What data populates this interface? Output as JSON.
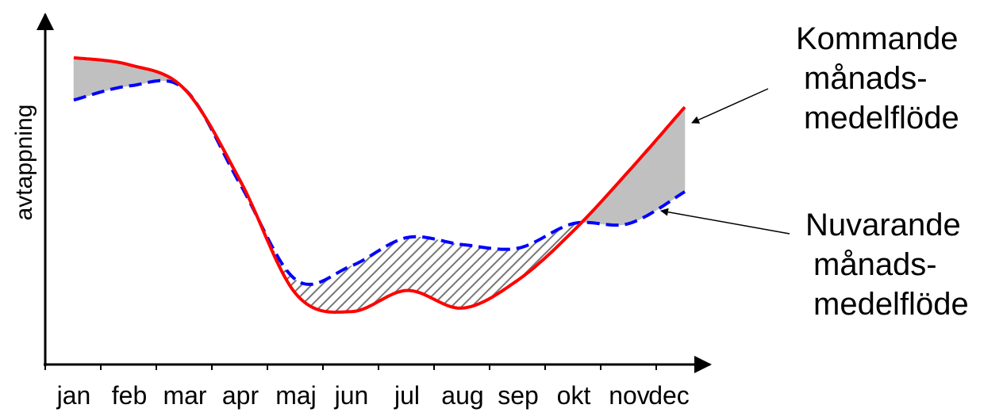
{
  "chart_data": {
    "type": "line",
    "ylabel": "avtappning",
    "categories": [
      "jan",
      "feb",
      "mar",
      "apr",
      "maj",
      "jun",
      "jul",
      "aug",
      "sep",
      "okt",
      "nov",
      "dec"
    ],
    "series": [
      {
        "name": "Kommande månads-medelflöde",
        "color": "#ff0000",
        "values": [
          87,
          85,
          78,
          52,
          20,
          15,
          21,
          16,
          24,
          38,
          55,
          73
        ]
      },
      {
        "name": "Nuvarande månads-medelflöde",
        "color": "#0000ff",
        "values": [
          75,
          79,
          78,
          51,
          24,
          28,
          36,
          34,
          33,
          40,
          40,
          49
        ]
      }
    ],
    "ylim": [
      0,
      100
    ],
    "annotations": [
      {
        "lines": [
          "Kommande",
          "månads-",
          "medelflöde"
        ]
      },
      {
        "lines": [
          "Nuvarande",
          "månads-",
          "medelflöde"
        ]
      }
    ]
  }
}
